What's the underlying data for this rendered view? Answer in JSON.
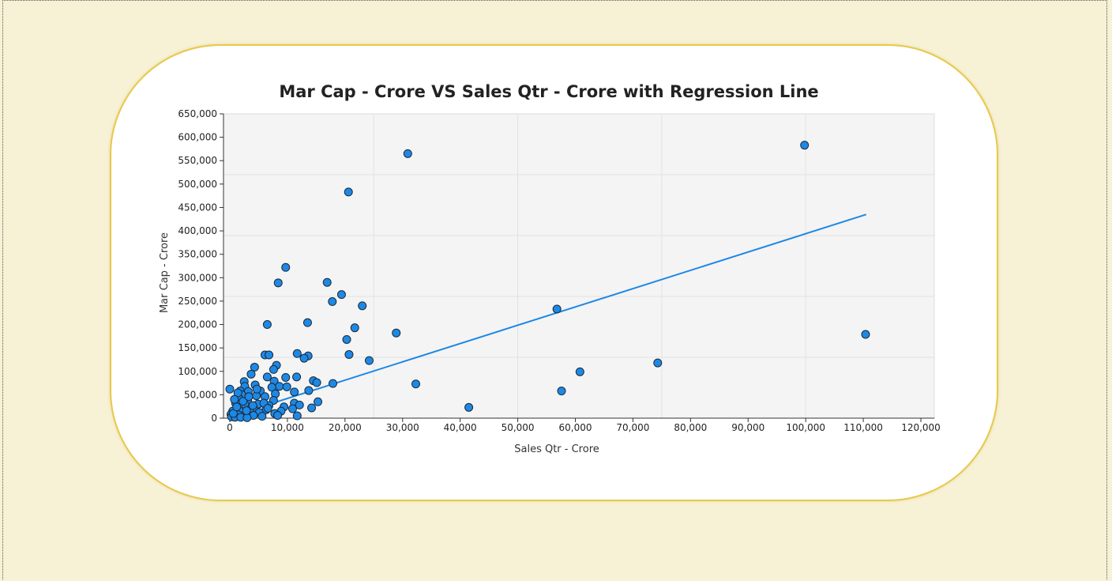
{
  "chart_data": {
    "type": "scatter",
    "title": "Mar Cap - Crore VS Sales Qtr - Crore with Regression Line",
    "xlabel": "Sales Qtr - Crore",
    "ylabel": "Mar Cap - Crore",
    "xlim": [
      0,
      120000
    ],
    "ylim": [
      0,
      650000
    ],
    "x_ticks": [
      "0",
      "10,000",
      "20,000",
      "30,000",
      "40,000",
      "50,000",
      "60,000",
      "70,000",
      "80,000",
      "90,000",
      "100,000",
      "110,000",
      "120,000"
    ],
    "y_ticks": [
      "0",
      "50,000",
      "100,000",
      "150,000",
      "200,000",
      "250,000",
      "300,000",
      "350,000",
      "400,000",
      "450,000",
      "500,000",
      "550,000",
      "600,000",
      "650,000"
    ],
    "grid": true,
    "colors": {
      "point": "#1e88e5",
      "point_stroke": "#1a2a3a",
      "line": "#1e88e5",
      "plot_bg": "#f4f4f4"
    },
    "series": [
      {
        "points": [
          [
            30900,
            565000
          ],
          [
            99800,
            583000
          ],
          [
            20600,
            483000
          ],
          [
            9700,
            322000
          ],
          [
            8400,
            289000
          ],
          [
            16900,
            290000
          ],
          [
            19400,
            264000
          ],
          [
            17800,
            249000
          ],
          [
            23000,
            240000
          ],
          [
            56800,
            233000
          ],
          [
            13500,
            204000
          ],
          [
            6500,
            200000
          ],
          [
            21700,
            193000
          ],
          [
            28900,
            182000
          ],
          [
            110400,
            179000
          ],
          [
            20300,
            168000
          ],
          [
            11700,
            138000
          ],
          [
            13600,
            133000
          ],
          [
            6100,
            135000
          ],
          [
            6800,
            135000
          ],
          [
            20700,
            136000
          ],
          [
            12900,
            128000
          ],
          [
            24200,
            123000
          ],
          [
            74300,
            118000
          ],
          [
            8100,
            113000
          ],
          [
            4300,
            109000
          ],
          [
            7600,
            104000
          ],
          [
            60800,
            99000
          ],
          [
            3700,
            94000
          ],
          [
            6500,
            88000
          ],
          [
            9700,
            87000
          ],
          [
            11600,
            88000
          ],
          [
            2500,
            78000
          ],
          [
            7700,
            79000
          ],
          [
            14500,
            80000
          ],
          [
            15100,
            76000
          ],
          [
            17900,
            74000
          ],
          [
            32300,
            73000
          ],
          [
            4400,
            71000
          ],
          [
            8600,
            68000
          ],
          [
            9900,
            67000
          ],
          [
            2600,
            68000
          ],
          [
            7300,
            66000
          ],
          [
            0,
            62000
          ],
          [
            1800,
            58000
          ],
          [
            3200,
            57000
          ],
          [
            5300,
            58000
          ],
          [
            11200,
            56000
          ],
          [
            13700,
            59000
          ],
          [
            57600,
            58000
          ],
          [
            4600,
            48000
          ],
          [
            7900,
            52000
          ],
          [
            2100,
            50000
          ],
          [
            6100,
            46000
          ],
          [
            1600,
            42000
          ],
          [
            3100,
            38000
          ],
          [
            7600,
            38000
          ],
          [
            15300,
            35000
          ],
          [
            11200,
            32000
          ],
          [
            4900,
            30000
          ],
          [
            1000,
            32000
          ],
          [
            2700,
            28000
          ],
          [
            6800,
            27000
          ],
          [
            12100,
            28000
          ],
          [
            3800,
            24000
          ],
          [
            9400,
            24000
          ],
          [
            14200,
            22000
          ],
          [
            41500,
            23000
          ],
          [
            10900,
            20000
          ],
          [
            1300,
            20000
          ],
          [
            4200,
            19000
          ],
          [
            6300,
            18000
          ],
          [
            8900,
            15000
          ],
          [
            500,
            15000
          ],
          [
            2000,
            14000
          ],
          [
            3500,
            13000
          ],
          [
            5100,
            12000
          ],
          [
            7800,
            10000
          ],
          [
            200,
            8000
          ],
          [
            1500,
            7000
          ],
          [
            2600,
            6000
          ],
          [
            4100,
            6000
          ],
          [
            11700,
            5000
          ],
          [
            300,
            3000
          ],
          [
            900,
            2000
          ],
          [
            1900,
            2000
          ],
          [
            3000,
            1000
          ],
          [
            5600,
            4000
          ],
          [
            8300,
            6000
          ],
          [
            600,
            10000
          ],
          [
            1200,
            24000
          ],
          [
            2300,
            36000
          ],
          [
            3300,
            46000
          ],
          [
            4700,
            62000
          ],
          [
            1400,
            54000
          ],
          [
            800,
            40000
          ],
          [
            5900,
            32000
          ],
          [
            2900,
            16000
          ],
          [
            4000,
            27000
          ],
          [
            6600,
            21000
          ]
        ]
      }
    ],
    "regression": {
      "x": [
        0,
        110500
      ],
      "y": [
        3000,
        435000
      ]
    }
  }
}
